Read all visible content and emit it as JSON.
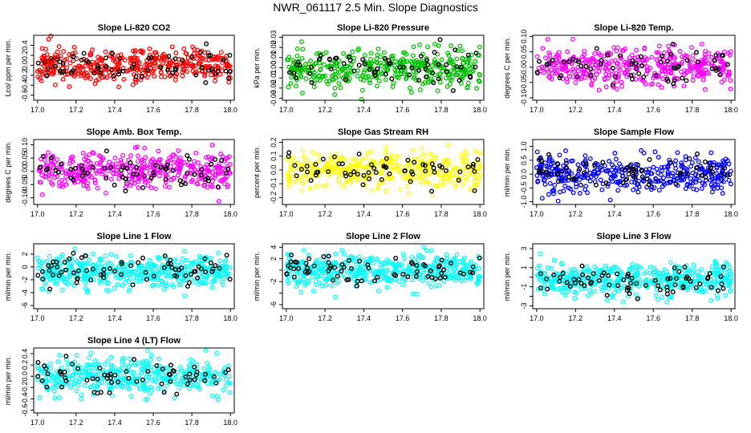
{
  "title": "NWR_061117  2.5 Min. Slope Diagnostics",
  "chart_data": [
    {
      "type": "scatter",
      "title": "Slope Li-820 CO2",
      "ylabel": "Lco/ ppm per min.",
      "color": "#ff0000",
      "xlim": [
        16.98,
        18.02
      ],
      "ylim": [
        -0.7,
        0.6
      ],
      "yticks": [
        -0.6,
        -0.4,
        -0.2,
        0.0,
        0.2,
        0.4
      ],
      "ytick_labels": [
        "-0.6",
        "-0.4",
        "-0.2",
        "0.0",
        "0.2",
        "0.4"
      ],
      "xticks": [
        17.0,
        17.2,
        17.4,
        17.6,
        17.8,
        18.0
      ],
      "xtick_labels": [
        "17.0",
        "17.2",
        "17.4",
        "17.6",
        "17.8",
        "18.0"
      ],
      "n": 400,
      "spread": 0.17,
      "seed": 11
    },
    {
      "type": "scatter",
      "title": "Slope Li-820 Pressure",
      "ylabel": "kPa per min.",
      "color": "#00c000",
      "xlim": [
        16.98,
        18.02
      ],
      "ylim": [
        -0.032,
        0.032
      ],
      "yticks": [
        -0.03,
        -0.02,
        -0.01,
        0.0,
        0.01,
        0.02,
        0.03
      ],
      "ytick_labels": [
        "-0.03",
        "-0.02",
        "-0.01",
        "0.00",
        "0.01",
        "0.02",
        "0.03"
      ],
      "xticks": [
        17.0,
        17.2,
        17.4,
        17.6,
        17.8,
        18.0
      ],
      "xtick_labels": [
        "17.0",
        "17.2",
        "17.4",
        "17.6",
        "17.8",
        "18.0"
      ],
      "n": 400,
      "spread": 0.009,
      "seed": 23
    },
    {
      "type": "scatter",
      "title": "Slope Li-820 Temp.",
      "ylabel": "degrees C per min.",
      "color": "#ff00ff",
      "xlim": [
        16.98,
        18.02
      ],
      "ylim": [
        -0.108,
        0.104
      ],
      "yticks": [
        -0.1,
        -0.05,
        0.0,
        0.05,
        0.1
      ],
      "ytick_labels": [
        "-0.10",
        "-0.05",
        "0.00",
        "0.05",
        "0.10"
      ],
      "xticks": [
        17.0,
        17.2,
        17.4,
        17.6,
        17.8,
        18.0
      ],
      "xtick_labels": [
        "17.0",
        "17.2",
        "17.4",
        "17.6",
        "17.8",
        "18.0"
      ],
      "n": 400,
      "spread": 0.03,
      "seed": 37
    },
    {
      "type": "scatter",
      "title": "Slope Amb. Box Temp.",
      "ylabel": "degrees C per min.",
      "color": "#ff00ff",
      "xlim": [
        16.98,
        18.02
      ],
      "ylim": [
        -0.125,
        0.12
      ],
      "yticks": [
        -0.1,
        -0.05,
        0.0,
        0.05,
        0.1
      ],
      "ytick_labels": [
        "-0.10",
        "-0.05",
        "0.00",
        "0.05",
        "0.10"
      ],
      "xticks": [
        17.0,
        17.2,
        17.4,
        17.6,
        17.8,
        18.0
      ],
      "xtick_labels": [
        "17.0",
        "17.2",
        "17.4",
        "17.6",
        "17.8",
        "18.0"
      ],
      "n": 400,
      "spread": 0.035,
      "seed": 41
    },
    {
      "type": "scatter",
      "title": "Slope Gas Stream RH",
      "ylabel": "percent per min.",
      "color": "#ffff00",
      "xlim": [
        16.98,
        18.02
      ],
      "ylim": [
        -0.25,
        0.22
      ],
      "yticks": [
        -0.2,
        -0.1,
        0.0,
        0.1,
        0.2
      ],
      "ytick_labels": [
        "-0.2",
        "-0.1",
        "0.0",
        "0.1",
        "0.2"
      ],
      "xticks": [
        17.0,
        17.2,
        17.4,
        17.6,
        17.8,
        18.0
      ],
      "xtick_labels": [
        "17.0",
        "17.2",
        "17.4",
        "17.6",
        "17.8",
        "18.0"
      ],
      "n": 380,
      "spread": 0.065,
      "seed": 53
    },
    {
      "type": "scatter",
      "title": "Slope Sample Flow",
      "ylabel": "ml/min per min.",
      "color": "#0000ff",
      "xlim": [
        16.98,
        18.02
      ],
      "ylim": [
        -1.1,
        1.25
      ],
      "yticks": [
        -1.0,
        -0.5,
        0.0,
        0.5,
        1.0
      ],
      "ytick_labels": [
        "-1.0",
        "-0.5",
        "0.0",
        "0.5",
        "1.0"
      ],
      "xticks": [
        17.0,
        17.2,
        17.4,
        17.6,
        17.8,
        18.0
      ],
      "xtick_labels": [
        "17.0",
        "17.2",
        "17.4",
        "17.6",
        "17.8",
        "18.0"
      ],
      "n": 380,
      "spread": 0.3,
      "seed": 67
    },
    {
      "type": "scatter",
      "title": "Slope Line 1 Flow",
      "ylabel": "ml/min per min.",
      "color": "#00ffff",
      "xlim": [
        16.98,
        18.02
      ],
      "ylim": [
        -6.5,
        3.6
      ],
      "yticks": [
        -6,
        -4,
        -2,
        0,
        2
      ],
      "ytick_labels": [
        "-6",
        "-4",
        "-2",
        "0",
        "2"
      ],
      "xticks": [
        17.0,
        17.2,
        17.4,
        17.6,
        17.8,
        18.0
      ],
      "xtick_labels": [
        "17.0",
        "17.2",
        "17.4",
        "17.6",
        "17.8",
        "18.0"
      ],
      "n": 450,
      "spread": 1.2,
      "offset": -0.7,
      "seed": 71
    },
    {
      "type": "scatter",
      "title": "Slope Line 2 Flow",
      "ylabel": "ml/min per min.",
      "color": "#00ffff",
      "xlim": [
        16.98,
        18.02
      ],
      "ylim": [
        -6.7,
        4.6
      ],
      "yticks": [
        -6,
        -4,
        -2,
        0,
        2,
        4
      ],
      "ytick_labels": [
        "-6",
        "",
        "-2",
        "",
        "2",
        "4"
      ],
      "xticks": [
        17.0,
        17.2,
        17.4,
        17.6,
        17.8,
        18.0
      ],
      "xtick_labels": [
        "17.0",
        "17.2",
        "17.4",
        "17.6",
        "17.8",
        "18.0"
      ],
      "n": 450,
      "spread": 1.4,
      "seed": 83
    },
    {
      "type": "scatter",
      "title": "Slope Line 3 Flow",
      "ylabel": "ml/min per min.",
      "color": "#00ffff",
      "xlim": [
        16.98,
        18.02
      ],
      "ylim": [
        -3.3,
        3.5
      ],
      "yticks": [
        -3,
        -2,
        -1,
        0,
        1,
        2,
        3
      ],
      "ytick_labels": [
        "-3",
        "",
        "-1",
        "",
        "1",
        "",
        "3"
      ],
      "xticks": [
        17.0,
        17.2,
        17.4,
        17.6,
        17.8,
        18.0
      ],
      "xtick_labels": [
        "17.0",
        "17.2",
        "17.4",
        "17.6",
        "17.8",
        "18.0"
      ],
      "n": 450,
      "spread": 0.9,
      "offset": -0.3,
      "seed": 97
    },
    {
      "type": "scatter",
      "title": "Slope Line 4 (LT) Flow",
      "ylabel": "ml/min per min.",
      "color": "#00ffff",
      "xlim": [
        16.98,
        18.02
      ],
      "ylim": [
        -0.65,
        0.5
      ],
      "yticks": [
        -0.6,
        -0.4,
        -0.2,
        0.0,
        0.2,
        0.4
      ],
      "ytick_labels": [
        "-0.6",
        "-0.4",
        "-0.2",
        "0.0",
        "0.2",
        "0.4"
      ],
      "xticks": [
        17.0,
        17.2,
        17.4,
        17.6,
        17.8,
        18.0
      ],
      "xtick_labels": [
        "17.0",
        "17.2",
        "17.4",
        "17.6",
        "17.8",
        "18.0"
      ],
      "n": 400,
      "spread": 0.16,
      "seed": 101
    }
  ]
}
